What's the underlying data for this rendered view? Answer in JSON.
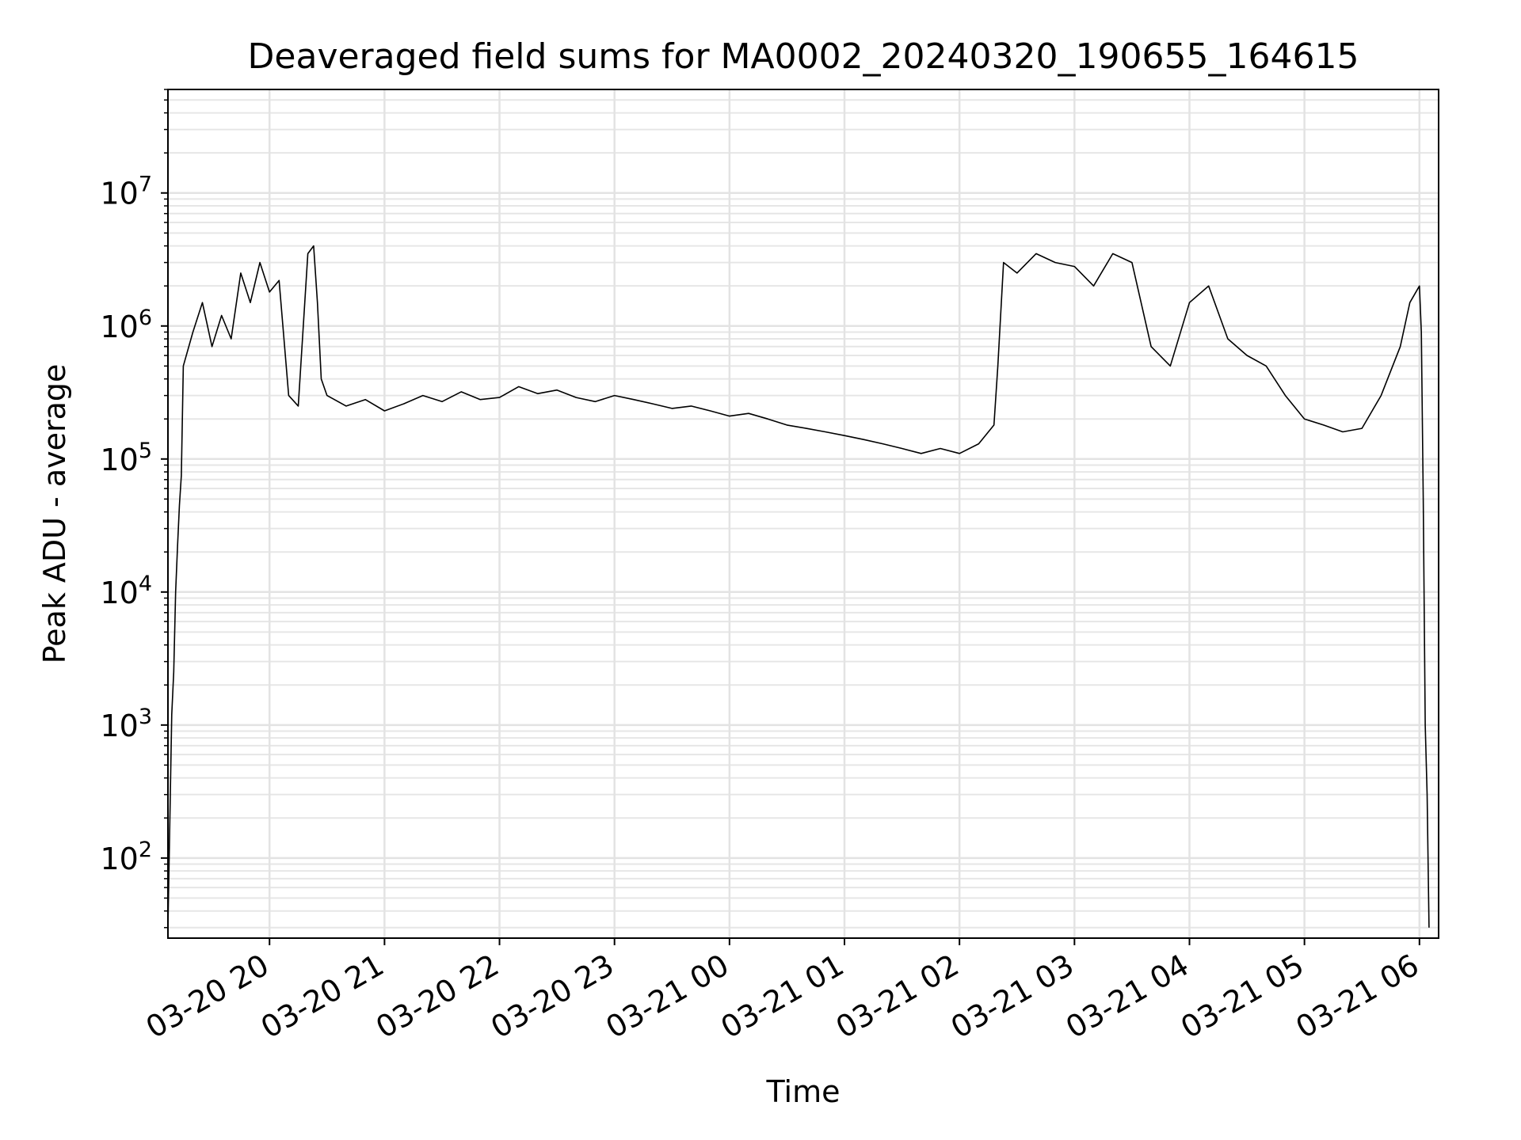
{
  "chart_data": {
    "type": "line",
    "title": "Deaveraged field sums for MA0002_20240320_190655_164615",
    "xlabel": "Time",
    "ylabel": "Peak ADU - average",
    "yscale": "log",
    "ylim": [
      25,
      60000000
    ],
    "xlim": [
      "2024-03-20 19:07",
      "2024-03-21 06:10"
    ],
    "grid": {
      "major": true,
      "minor_y": true
    },
    "line_color": "#000000",
    "x_ticks": [
      {
        "t": "2024-03-20 20:00",
        "label": "03-20 20"
      },
      {
        "t": "2024-03-20 21:00",
        "label": "03-20 21"
      },
      {
        "t": "2024-03-20 22:00",
        "label": "03-20 22"
      },
      {
        "t": "2024-03-20 23:00",
        "label": "03-20 23"
      },
      {
        "t": "2024-03-21 00:00",
        "label": "03-21 00"
      },
      {
        "t": "2024-03-21 01:00",
        "label": "03-21 01"
      },
      {
        "t": "2024-03-21 02:00",
        "label": "03-21 02"
      },
      {
        "t": "2024-03-21 03:00",
        "label": "03-21 03"
      },
      {
        "t": "2024-03-21 04:00",
        "label": "03-21 04"
      },
      {
        "t": "2024-03-21 05:00",
        "label": "03-21 05"
      },
      {
        "t": "2024-03-21 06:00",
        "label": "03-21 06"
      }
    ],
    "y_ticks": [
      {
        "value": 100,
        "base": "10",
        "exp": "2"
      },
      {
        "value": 1000,
        "base": "10",
        "exp": "3"
      },
      {
        "value": 10000,
        "base": "10",
        "exp": "4"
      },
      {
        "value": 100000,
        "base": "10",
        "exp": "5"
      },
      {
        "value": 1000000,
        "base": "10",
        "exp": "6"
      },
      {
        "value": 10000000,
        "base": "10",
        "exp": "7"
      }
    ],
    "series": [
      {
        "points": [
          [
            "2024-03-20 19:07",
            30
          ],
          [
            "2024-03-20 19:09",
            1200
          ],
          [
            "2024-03-20 19:10",
            2500
          ],
          [
            "2024-03-20 19:11",
            10000
          ],
          [
            "2024-03-20 19:12",
            22000
          ],
          [
            "2024-03-20 19:13",
            45000
          ],
          [
            "2024-03-20 19:14",
            75000
          ],
          [
            "2024-03-20 19:15",
            500000
          ],
          [
            "2024-03-20 19:20",
            900000
          ],
          [
            "2024-03-20 19:25",
            1500000
          ],
          [
            "2024-03-20 19:30",
            700000
          ],
          [
            "2024-03-20 19:35",
            1200000
          ],
          [
            "2024-03-20 19:40",
            800000
          ],
          [
            "2024-03-20 19:45",
            2500000
          ],
          [
            "2024-03-20 19:50",
            1500000
          ],
          [
            "2024-03-20 19:55",
            3000000
          ],
          [
            "2024-03-20 20:00",
            1800000
          ],
          [
            "2024-03-20 20:05",
            2200000
          ],
          [
            "2024-03-20 20:10",
            300000
          ],
          [
            "2024-03-20 20:15",
            250000
          ],
          [
            "2024-03-20 20:20",
            3500000
          ],
          [
            "2024-03-20 20:23",
            4000000
          ],
          [
            "2024-03-20 20:25",
            1500000
          ],
          [
            "2024-03-20 20:27",
            400000
          ],
          [
            "2024-03-20 20:30",
            300000
          ],
          [
            "2024-03-20 20:40",
            250000
          ],
          [
            "2024-03-20 20:50",
            280000
          ],
          [
            "2024-03-20 21:00",
            230000
          ],
          [
            "2024-03-20 21:10",
            260000
          ],
          [
            "2024-03-20 21:20",
            300000
          ],
          [
            "2024-03-20 21:30",
            270000
          ],
          [
            "2024-03-20 21:40",
            320000
          ],
          [
            "2024-03-20 21:50",
            280000
          ],
          [
            "2024-03-20 22:00",
            290000
          ],
          [
            "2024-03-20 22:10",
            350000
          ],
          [
            "2024-03-20 22:20",
            310000
          ],
          [
            "2024-03-20 22:30",
            330000
          ],
          [
            "2024-03-20 22:40",
            290000
          ],
          [
            "2024-03-20 22:50",
            270000
          ],
          [
            "2024-03-20 23:00",
            300000
          ],
          [
            "2024-03-20 23:10",
            280000
          ],
          [
            "2024-03-20 23:20",
            260000
          ],
          [
            "2024-03-20 23:30",
            240000
          ],
          [
            "2024-03-20 23:40",
            250000
          ],
          [
            "2024-03-20 23:50",
            230000
          ],
          [
            "2024-03-21 00:00",
            210000
          ],
          [
            "2024-03-21 00:10",
            220000
          ],
          [
            "2024-03-21 00:20",
            200000
          ],
          [
            "2024-03-21 00:30",
            180000
          ],
          [
            "2024-03-21 00:40",
            170000
          ],
          [
            "2024-03-21 00:50",
            160000
          ],
          [
            "2024-03-21 01:00",
            150000
          ],
          [
            "2024-03-21 01:10",
            140000
          ],
          [
            "2024-03-21 01:20",
            130000
          ],
          [
            "2024-03-21 01:30",
            120000
          ],
          [
            "2024-03-21 01:40",
            110000
          ],
          [
            "2024-03-21 01:50",
            120000
          ],
          [
            "2024-03-21 02:00",
            110000
          ],
          [
            "2024-03-21 02:10",
            130000
          ],
          [
            "2024-03-21 02:18",
            180000
          ],
          [
            "2024-03-21 02:20",
            500000
          ],
          [
            "2024-03-21 02:23",
            3000000
          ],
          [
            "2024-03-21 02:30",
            2500000
          ],
          [
            "2024-03-21 02:40",
            3500000
          ],
          [
            "2024-03-21 02:50",
            3000000
          ],
          [
            "2024-03-21 03:00",
            2800000
          ],
          [
            "2024-03-21 03:10",
            2000000
          ],
          [
            "2024-03-21 03:20",
            3500000
          ],
          [
            "2024-03-21 03:30",
            3000000
          ],
          [
            "2024-03-21 03:40",
            700000
          ],
          [
            "2024-03-21 03:50",
            500000
          ],
          [
            "2024-03-21 04:00",
            1500000
          ],
          [
            "2024-03-21 04:10",
            2000000
          ],
          [
            "2024-03-21 04:20",
            800000
          ],
          [
            "2024-03-21 04:30",
            600000
          ],
          [
            "2024-03-21 04:40",
            500000
          ],
          [
            "2024-03-21 04:50",
            300000
          ],
          [
            "2024-03-21 05:00",
            200000
          ],
          [
            "2024-03-21 05:10",
            180000
          ],
          [
            "2024-03-21 05:20",
            160000
          ],
          [
            "2024-03-21 05:30",
            170000
          ],
          [
            "2024-03-21 05:40",
            300000
          ],
          [
            "2024-03-21 05:50",
            700000
          ],
          [
            "2024-03-21 05:55",
            1500000
          ],
          [
            "2024-03-21 06:00",
            2000000
          ],
          [
            "2024-03-21 06:01",
            900000
          ],
          [
            "2024-03-21 06:02",
            50000
          ],
          [
            "2024-03-21 06:03",
            1000
          ],
          [
            "2024-03-21 06:04",
            300
          ],
          [
            "2024-03-21 06:05",
            30
          ]
        ]
      }
    ]
  }
}
